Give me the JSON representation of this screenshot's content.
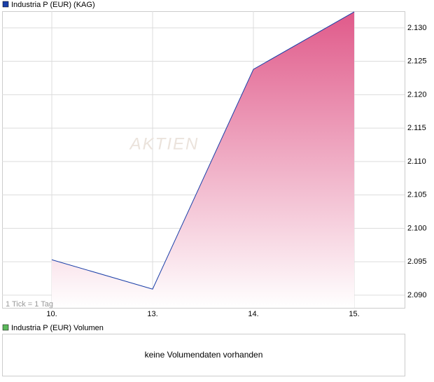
{
  "chart_data": [
    {
      "type": "line",
      "title": "Industria P (EUR) (KAG)",
      "note": "1 Tick = 1 Tag",
      "watermark": "AKTIEN",
      "categories": [
        "10.",
        "13.",
        "14.",
        "15."
      ],
      "series": [
        {
          "name": "Industria P (EUR) (KAG)",
          "color": "#1a3fa8",
          "values": [
            2.0953,
            2.0909,
            2.1238,
            2.1324
          ]
        }
      ],
      "ylim": [
        2.0881,
        2.1325
      ],
      "yticks": [
        {
          "value": 2.09,
          "label": "2.090"
        },
        {
          "value": 2.095,
          "label": "2.095"
        },
        {
          "value": 2.1,
          "label": "2.100"
        },
        {
          "value": 2.105,
          "label": "2.105"
        },
        {
          "value": 2.11,
          "label": "2.110"
        },
        {
          "value": 2.115,
          "label": "2.115"
        },
        {
          "value": 2.12,
          "label": "2.120"
        },
        {
          "value": 2.125,
          "label": "2.125"
        },
        {
          "value": 2.13,
          "label": "2.130"
        }
      ],
      "grid": true,
      "fill_color": "#e05a8a"
    },
    {
      "type": "empty",
      "title": "Industria P (EUR) Volumen",
      "legend_color": "#5cb85c",
      "message": "keine Volumendaten vorhanden"
    }
  ]
}
